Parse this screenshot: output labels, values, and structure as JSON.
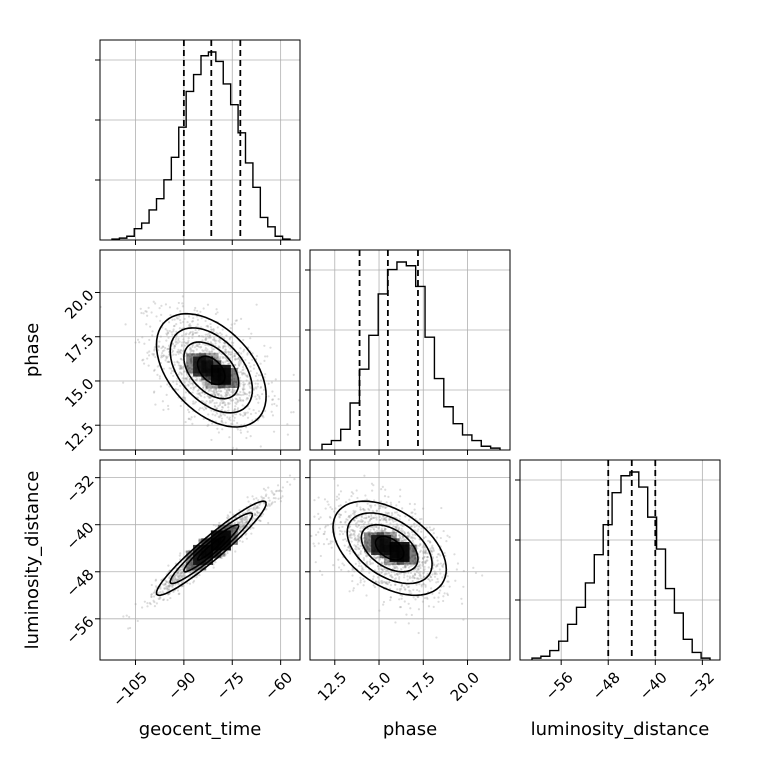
{
  "chart_data": {
    "type": "corner",
    "parameters": [
      {
        "name": "geocent_time",
        "label": "geocent_time",
        "range": [
          -116,
          -54
        ],
        "ticks": [
          -105,
          -90,
          -75,
          -60
        ],
        "tick_labels": [
          "−105",
          "−90",
          "−75",
          "−60"
        ],
        "quantiles": [
          -90,
          -81.5,
          -72.5
        ],
        "peak": -81.5,
        "sigma": 8.5
      },
      {
        "name": "phase",
        "label": "phase",
        "range": [
          11.1,
          22.4
        ],
        "ticks": [
          12.5,
          15.0,
          17.5,
          20.0
        ],
        "tick_labels": [
          "12.5",
          "15.0",
          "17.5",
          "20.0"
        ],
        "quantiles": [
          13.9,
          15.5,
          17.2
        ],
        "peak": 15.6,
        "sigma": 1.6
      },
      {
        "name": "luminosity_distance",
        "label": "luminosity_distance",
        "range": [
          -63,
          -29
        ],
        "ticks": [
          -56,
          -48,
          -40,
          -32
        ],
        "tick_labels": [
          "−56",
          "−48",
          "−40",
          "−32"
        ],
        "quantiles": [
          -48,
          -44,
          -40
        ],
        "peak": -44,
        "sigma": 4
      }
    ],
    "histograms": [
      [
        0.005,
        0.01,
        0.02,
        0.06,
        0.09,
        0.16,
        0.22,
        0.32,
        0.44,
        0.6,
        0.79,
        0.88,
        0.98,
        1.0,
        0.95,
        0.83,
        0.72,
        0.57,
        0.41,
        0.28,
        0.12,
        0.07,
        0.02,
        0.005
      ],
      [
        0.03,
        0.05,
        0.11,
        0.25,
        0.43,
        0.61,
        0.83,
        0.96,
        1.0,
        0.98,
        0.87,
        0.6,
        0.38,
        0.23,
        0.14,
        0.08,
        0.05,
        0.02,
        0.01
      ],
      [
        0.01,
        0.02,
        0.05,
        0.1,
        0.19,
        0.28,
        0.41,
        0.56,
        0.72,
        0.89,
        0.98,
        1.0,
        0.92,
        0.76,
        0.59,
        0.38,
        0.25,
        0.11,
        0.04,
        0.01
      ]
    ],
    "correlations": {
      "phase|geocent_time": -0.45,
      "luminosity_distance|geocent_time": 0.95,
      "luminosity_distance|phase": -0.45
    },
    "contour_levels": [
      "0.5 sigma",
      "1 sigma",
      "1.5 sigma",
      "2 sigma"
    ],
    "grid": true,
    "colors": {
      "points": "#9a9a9a",
      "contour": "#000000",
      "grid": "#b0b0b0",
      "density": "#000000"
    }
  }
}
